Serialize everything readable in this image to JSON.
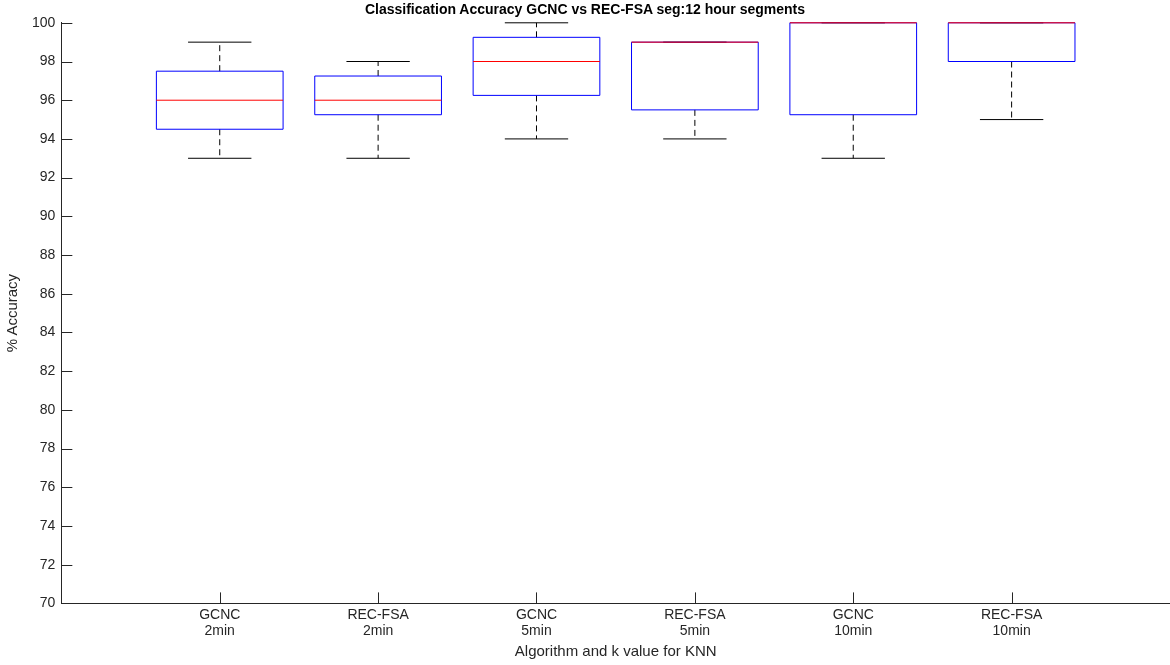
{
  "chart_data": {
    "type": "box",
    "title": "Classification Accuracy GCNC vs REC-FSA seg:12 hour segments",
    "xlabel": "Algorithm and k value for KNN",
    "ylabel": "% Accuracy",
    "categories": [
      "GCNC\n2min",
      "REC-FSA\n2min",
      "GCNC\n5min",
      "REC-FSA\n5min",
      "GCNC\n10min",
      "REC-FSA\n10min"
    ],
    "boxes": [
      {
        "low": 93,
        "q1": 94.5,
        "median": 96,
        "q3": 97.5,
        "high": 99
      },
      {
        "low": 93,
        "q1": 95.25,
        "median": 96,
        "q3": 97.25,
        "high": 98
      },
      {
        "low": 94,
        "q1": 96.25,
        "median": 98,
        "q3": 99.25,
        "high": 100
      },
      {
        "low": 94,
        "q1": 95.5,
        "median": 99,
        "q3": 99,
        "high": 99
      },
      {
        "low": 93,
        "q1": 95.25,
        "median": 100,
        "q3": 100,
        "high": 100
      },
      {
        "low": 95,
        "q1": 98,
        "median": 100,
        "q3": 100,
        "high": 100
      }
    ],
    "color": "#0000ff",
    "ylim": [
      70,
      100
    ],
    "yticks": [
      70,
      72,
      74,
      76,
      78,
      80,
      82,
      84,
      86,
      88,
      90,
      92,
      94,
      96,
      98,
      100
    ],
    "grid": false,
    "legend": false
  }
}
